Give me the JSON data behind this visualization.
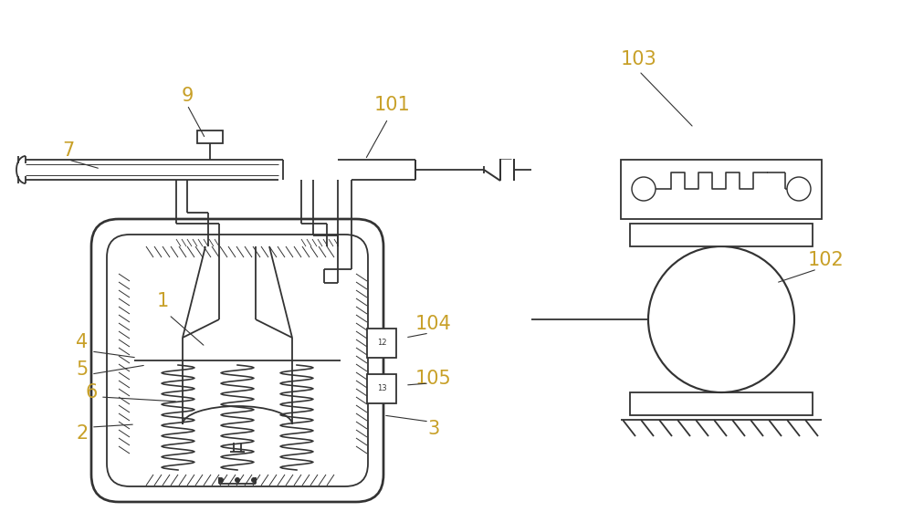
{
  "bg_color": "#ffffff",
  "line_color": "#333333",
  "label_color": "#c8a028",
  "figsize": [
    10.0,
    5.72
  ],
  "dpi": 100
}
